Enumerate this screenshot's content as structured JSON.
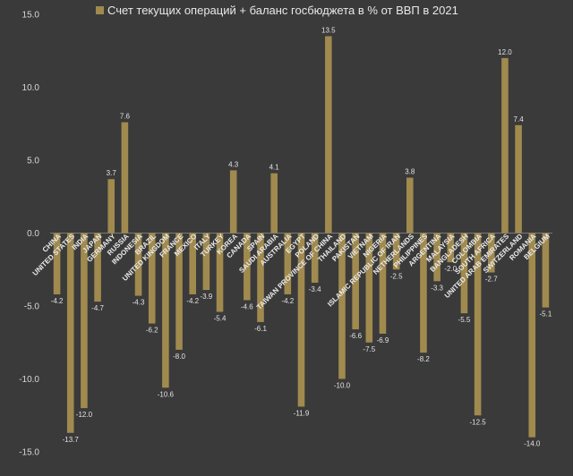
{
  "chart_data": {
    "type": "bar",
    "legend": "Счет текущих операций + баланс госбюджета в % от ВВП в 2021",
    "legend_position": "top",
    "ylim": [
      -15,
      15
    ],
    "yticks": [
      "15.0",
      "10.0",
      "5.0",
      "0.0",
      "-5.0",
      "-10.0",
      "-15.0"
    ],
    "grid": false,
    "bar_color": "#a08a4e",
    "categories": [
      "CHINA",
      "UNITED STATES",
      "INDIA",
      "JAPAN",
      "GERMANY",
      "RUSSIA",
      "INDONESIA",
      "BRAZIL",
      "UNITED KINGDOM",
      "FRANCE",
      "MEXICO",
      "ITALY",
      "TURKEY",
      "KOREA",
      "CANADA",
      "SPAIN",
      "SAUDI ARABIA",
      "AUSTRALIA",
      "EGYPT",
      "POLAND",
      "TAIWAN PROVINCE OF CHINA",
      "THAILAND",
      "PAKISTAN",
      "VIETNAM",
      "NIGERIA",
      "ISLAMIC REPUBLIC OF IRAN",
      "NETHERLANDS",
      "PHILIPPINES",
      "ARGENTINA",
      "MALAYSIA",
      "BANGLADESH",
      "COLOMBIA",
      "SOUTH AFRICA",
      "UNITED ARAB EMIRATES",
      "SWITZERLAND",
      "ROMANIA",
      "BELGIUM"
    ],
    "values": [
      -4.2,
      -13.7,
      -12.0,
      -4.7,
      3.7,
      7.6,
      -4.3,
      -6.2,
      -10.6,
      -8.0,
      -4.2,
      -3.9,
      -5.4,
      4.3,
      -4.6,
      -6.1,
      4.1,
      -4.2,
      -11.9,
      -3.4,
      13.5,
      -10.0,
      -6.6,
      -7.5,
      -6.9,
      -2.5,
      3.8,
      -8.2,
      -3.3,
      -2.0,
      -5.5,
      -12.5,
      -2.7,
      12.0,
      7.4,
      -14.0,
      -5.1
    ],
    "data_labels": [
      "-4.2",
      "-13.7",
      "-12.0",
      "-4.7",
      "3.7",
      "7.6",
      "-4.3",
      "-6.2",
      "-10.6",
      "-8.0",
      "-4.2",
      "-3.9",
      "-5.4",
      "4.3",
      "-4.6",
      "-6.1",
      "4.1",
      "-4.2",
      "-11.9",
      "-3.4",
      "13.5",
      "-10.0",
      "-6.6",
      "-7.5",
      "-6.9",
      "-2.5",
      "3.8",
      "-8.2",
      "-3.3",
      "-2.0",
      "-5.5",
      "-12.5",
      "-2.7",
      "12.0",
      "7.4",
      "-14.0",
      "-5.1"
    ]
  }
}
